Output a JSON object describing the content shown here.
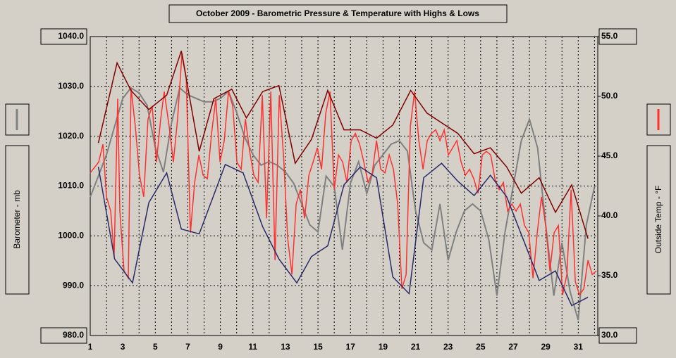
{
  "chart_data": {
    "type": "line",
    "title": "October 2009 - Barometric Pressure & Temperature with Highs & Lows",
    "ylabel": "Barometer - mb",
    "y2label": "Outside Temp - °F",
    "xlim": [
      1,
      32.2
    ],
    "xticks": [
      1,
      {
        "value": 2,
        "label": null
      },
      3,
      {
        "value": 4,
        "label": null
      },
      5,
      {
        "value": 6,
        "label": null
      },
      7,
      {
        "value": 8,
        "label": null
      },
      9,
      {
        "value": 10,
        "label": null
      },
      11,
      {
        "value": 12,
        "label": null
      },
      13,
      {
        "value": 14,
        "label": null
      },
      15,
      {
        "value": 16,
        "label": null
      },
      17,
      {
        "value": 18,
        "label": null
      },
      19,
      {
        "value": 20,
        "label": null
      },
      21,
      {
        "value": 22,
        "label": null
      },
      23,
      {
        "value": 24,
        "label": null
      },
      25,
      {
        "value": 26,
        "label": null
      },
      27,
      {
        "value": 28,
        "label": null
      },
      29,
      {
        "value": 30,
        "label": null
      },
      31,
      {
        "value": 32,
        "label": null
      }
    ],
    "ylim": [
      980,
      1040
    ],
    "yticks": [
      {
        "value": 980,
        "label": "980.0"
      },
      {
        "value": 990,
        "label": "990.0"
      },
      {
        "value": 1000,
        "label": "1000.0"
      },
      {
        "value": 1010,
        "label": "1010.0"
      },
      {
        "value": 1020,
        "label": "1020.0"
      },
      {
        "value": 1030,
        "label": "1030.0"
      },
      {
        "value": 1040,
        "label": "1040.0"
      }
    ],
    "y2lim": [
      30,
      55
    ],
    "y2ticks": [
      {
        "value": 30,
        "label": "30.0"
      },
      {
        "value": 35,
        "label": "35.0"
      },
      {
        "value": 40,
        "label": "40.0"
      },
      {
        "value": 45,
        "label": "45.0"
      },
      {
        "value": 50,
        "label": "50.0"
      },
      {
        "value": 55,
        "label": "55.0"
      }
    ],
    "grid": true,
    "series": [
      {
        "name": "Barometer - mb",
        "color": "#808080",
        "axis": "y",
        "x": [
          1,
          1.5,
          2,
          2.5,
          3,
          3.5,
          4,
          4.5,
          5,
          5.5,
          6,
          6.5,
          7,
          7.5,
          8,
          8.5,
          9,
          9.5,
          10,
          10.5,
          11,
          11.5,
          12,
          12.5,
          13,
          13.5,
          14,
          14.5,
          15,
          15.5,
          16,
          16.5,
          17,
          17.5,
          18,
          18.5,
          19,
          19.5,
          20,
          20.5,
          21,
          21.5,
          22,
          22.5,
          23,
          23.5,
          24,
          24.5,
          25,
          25.5,
          26,
          26.5,
          27,
          27.5,
          28,
          28.5,
          29,
          29.5,
          30,
          30.5,
          31,
          31.5,
          32
        ],
        "values": [
          1007.8,
          1012,
          1016.3,
          1022,
          1027.6,
          1029.7,
          1028.7,
          1026.2,
          1017.7,
          1012.8,
          1022.7,
          1029.7,
          1028.3,
          1027.6,
          1026.9,
          1026.9,
          1027.6,
          1029,
          1024.8,
          1019.8,
          1016.3,
          1014.2,
          1014.9,
          1014.2,
          1012.8,
          1010.6,
          1006.4,
          1002.2,
          1000.8,
          1012,
          1009.9,
          997.2,
          1010.6,
          1014.9,
          1008.5,
          1014.2,
          1016.3,
          1018.4,
          1019.1,
          1017,
          1005,
          998.6,
          997.2,
          1006.4,
          995.1,
          1000.8,
          1005,
          1006.4,
          1005,
          999.3,
          988,
          1000.8,
          1009.9,
          1019.1,
          1023.4,
          1017.7,
          1002.2,
          988,
          998.6,
          988.8,
          983.1,
          1002.2,
          1009.9
        ]
      },
      {
        "name": "Outside Temp - °F",
        "color": "#ff3030",
        "axis": "y2",
        "x": [
          1.0,
          1.52,
          1.78,
          2.0,
          2.26,
          2.47,
          2.69,
          2.82,
          3.08,
          3.34,
          3.51,
          3.77,
          4.03,
          4.29,
          4.55,
          4.81,
          5.07,
          5.33,
          5.55,
          5.85,
          6.11,
          6.37,
          6.64,
          6.9,
          7.16,
          7.42,
          7.68,
          7.94,
          8.2,
          8.46,
          8.72,
          8.98,
          9.24,
          9.5,
          9.76,
          10.02,
          10.28,
          10.54,
          10.8,
          11.06,
          11.32,
          11.58,
          11.84,
          12.1,
          12.36,
          12.62,
          12.88,
          13.14,
          13.4,
          13.66,
          13.92,
          14.18,
          14.44,
          14.7,
          14.96,
          15.22,
          15.48,
          15.74,
          16.0,
          16.26,
          16.52,
          16.78,
          17.04,
          17.3,
          17.56,
          17.82,
          18.08,
          18.34,
          18.6,
          18.86,
          19.12,
          19.38,
          19.64,
          19.9,
          20.16,
          20.42,
          20.68,
          20.94,
          21.2,
          21.46,
          21.72,
          21.98,
          22.24,
          22.5,
          22.76,
          23.02,
          23.28,
          23.54,
          23.8,
          24.06,
          24.32,
          24.58,
          24.84,
          25.1,
          25.36,
          25.62,
          25.88,
          26.14,
          26.4,
          26.66,
          26.92,
          27.18,
          27.44,
          27.7,
          27.96,
          28.22,
          28.48,
          28.74,
          29.0,
          29.26,
          29.52,
          29.78,
          30.04,
          30.3,
          30.56,
          30.82,
          31.08,
          31.34,
          31.6,
          31.86,
          32.12
        ],
        "values": [
          43.6,
          44.5,
          46,
          41.6,
          40.4,
          36.6,
          49.8,
          40.4,
          35.4,
          34.8,
          50.7,
          47.5,
          43.4,
          41.6,
          48.1,
          49.2,
          44.5,
          48.1,
          50.4,
          47.5,
          44.5,
          48.1,
          53.6,
          51.6,
          38.6,
          42.8,
          45.1,
          43.4,
          43.1,
          46.9,
          49.8,
          44.5,
          46.3,
          50.4,
          49.2,
          44.5,
          43.9,
          48.1,
          45.4,
          43.4,
          42.8,
          50.1,
          39.8,
          50.4,
          36.3,
          50.1,
          45.1,
          38.1,
          35.1,
          41,
          42.2,
          39.8,
          43.4,
          44.5,
          45.7,
          43.9,
          48.6,
          50.4,
          42.2,
          45.1,
          44.5,
          42.8,
          46.3,
          46.9,
          46,
          44.5,
          42.8,
          43.6,
          46.3,
          43.9,
          43.6,
          45.1,
          43.9,
          41,
          33.9,
          35.1,
          47.5,
          50.4,
          46.3,
          43.9,
          46.3,
          46.9,
          47.2,
          46.3,
          47.2,
          45.1,
          45.7,
          46.3,
          44.5,
          43.4,
          43.9,
          43.1,
          41.9,
          45.1,
          45.4,
          45.1,
          43.1,
          42.2,
          42.8,
          40.4,
          41,
          40.4,
          41,
          39.2,
          38.6,
          34.8,
          38.6,
          41.6,
          39.2,
          35.4,
          38.6,
          39.2,
          33.4,
          35.1,
          42.2,
          34.5,
          33.4,
          33.9,
          36.3,
          35.1,
          35.4
        ]
      },
      {
        "color": "#800000",
        "axis": "y2",
        "x": [
          1.5,
          2.65,
          3.5,
          4.6,
          5.7,
          6.6,
          7.7,
          8.6,
          9.7,
          10.6,
          11.6,
          12.6,
          13.6,
          14.6,
          15.6,
          16.6,
          17.6,
          18.6,
          19.6,
          20.7,
          21.7,
          22.7,
          23.6,
          24.6,
          25.6,
          26.6,
          27.5,
          28.6,
          29.6,
          30.6,
          31.6
        ],
        "values": [
          46.1,
          52.8,
          50.5,
          48.9,
          50.1,
          53.8,
          45.4,
          49.8,
          50.6,
          48.2,
          50.4,
          50.9,
          44.4,
          46.4,
          50.5,
          47.2,
          47.2,
          46.5,
          47.6,
          50.5,
          48.6,
          47.7,
          46.9,
          45.2,
          45.7,
          44.1,
          41.9,
          43.2,
          40.3,
          42.6,
          38.1
        ]
      },
      {
        "color": "#2a2a6a",
        "axis": "y2",
        "x": [
          1.5,
          2.5,
          3.6,
          4.6,
          5.7,
          6.6,
          7.7,
          9.3,
          10.4,
          11.6,
          12.6,
          13.7,
          14.6,
          15.6,
          16.6,
          17.6,
          18.6,
          19.6,
          20.6,
          21.5,
          22.6,
          23.6,
          24.6,
          25.6,
          26.6,
          27.6,
          28.6,
          29.6,
          30.6,
          31.6
        ],
        "values": [
          44.1,
          36.4,
          34.4,
          41.1,
          43.6,
          38.9,
          38.5,
          44.3,
          43.6,
          39.1,
          36.4,
          34.4,
          36.6,
          37.5,
          42.6,
          44.1,
          43.2,
          34.9,
          33.5,
          43.2,
          44.4,
          42.9,
          41.7,
          43.4,
          41.6,
          38.1,
          34.6,
          35.4,
          32.5,
          33.2
        ]
      }
    ]
  }
}
